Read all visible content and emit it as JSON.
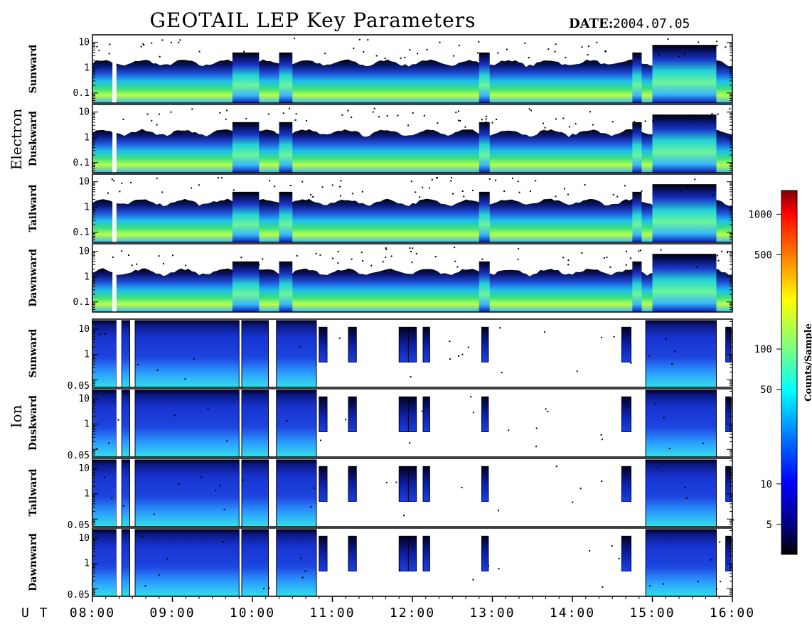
{
  "header": {
    "title": "GEOTAIL LEP Key Parameters",
    "date_label": "DATE:",
    "date_value": "2004.07.05"
  },
  "groups": [
    {
      "name": "Electron"
    },
    {
      "name": "Ion"
    }
  ],
  "chart_data": {
    "type": "heatmap",
    "title": "GEOTAIL LEP Key Parameters",
    "xlabel": "U T",
    "x_range": [
      "08:00",
      "16:00"
    ],
    "x_ticks": [
      "08:00",
      "09:00",
      "10:00",
      "11:00",
      "12:00",
      "13:00",
      "14:00",
      "15:00",
      "16:00"
    ],
    "panels": [
      {
        "group": "Electron",
        "direction": "Sunward",
        "y_scale": "log",
        "y_range": [
          0.04,
          20
        ],
        "y_ticks": [
          "10",
          "1",
          "0.1"
        ]
      },
      {
        "group": "Electron",
        "direction": "Duskward",
        "y_scale": "log",
        "y_range": [
          0.04,
          20
        ],
        "y_ticks": [
          "10",
          "1",
          "0.1"
        ]
      },
      {
        "group": "Electron",
        "direction": "Tailward",
        "y_scale": "log",
        "y_range": [
          0.04,
          20
        ],
        "y_ticks": [
          "10",
          "1",
          "0.1"
        ]
      },
      {
        "group": "Electron",
        "direction": "Dawnward",
        "y_scale": "log",
        "y_range": [
          0.04,
          20
        ],
        "y_ticks": [
          "10",
          "1",
          "0.1"
        ]
      },
      {
        "group": "Ion",
        "direction": "Sunward",
        "y_scale": "log",
        "y_range": [
          0.05,
          25
        ],
        "y_ticks": [
          "10",
          "1",
          "0.05"
        ]
      },
      {
        "group": "Ion",
        "direction": "Duskward",
        "y_scale": "log",
        "y_range": [
          0.05,
          25
        ],
        "y_ticks": [
          "10",
          "1",
          "0.05"
        ]
      },
      {
        "group": "Ion",
        "direction": "Tailward",
        "y_scale": "log",
        "y_range": [
          0.05,
          25
        ],
        "y_ticks": [
          "10",
          "1",
          "0.05"
        ]
      },
      {
        "group": "Ion",
        "direction": "Dawnward",
        "y_scale": "log",
        "y_range": [
          0.05,
          25
        ],
        "y_ticks": [
          "10",
          "1",
          "0.05"
        ]
      }
    ],
    "electron_activity": [
      {
        "start": "08:15",
        "end": "08:18",
        "level": "gap"
      },
      {
        "start": "09:45",
        "end": "10:05",
        "level": "enhanced"
      },
      {
        "start": "10:20",
        "end": "10:30",
        "level": "enhanced"
      },
      {
        "start": "12:50",
        "end": "12:58",
        "level": "enhanced"
      },
      {
        "start": "14:45",
        "end": "14:52",
        "level": "enhanced"
      },
      {
        "start": "15:00",
        "end": "15:48",
        "level": "enhanced"
      }
    ],
    "ion_activity": [
      {
        "start": "08:00",
        "end": "08:18",
        "level": "medium"
      },
      {
        "start": "08:18",
        "end": "08:22",
        "level": "gap"
      },
      {
        "start": "08:22",
        "end": "08:28",
        "level": "medium"
      },
      {
        "start": "08:32",
        "end": "09:50",
        "level": "medium"
      },
      {
        "start": "09:52",
        "end": "10:12",
        "level": "medium"
      },
      {
        "start": "10:18",
        "end": "10:48",
        "level": "medium"
      },
      {
        "start": "10:50",
        "end": "10:56",
        "level": "low"
      },
      {
        "start": "11:12",
        "end": "11:18",
        "level": "low"
      },
      {
        "start": "11:50",
        "end": "11:57",
        "level": "low"
      },
      {
        "start": "11:57",
        "end": "12:03",
        "level": "low"
      },
      {
        "start": "12:08",
        "end": "12:13",
        "level": "low"
      },
      {
        "start": "12:52",
        "end": "12:57",
        "level": "low"
      },
      {
        "start": "14:37",
        "end": "14:44",
        "level": "low"
      },
      {
        "start": "14:55",
        "end": "15:48",
        "level": "medium"
      },
      {
        "start": "15:55",
        "end": "15:59",
        "level": "low"
      }
    ],
    "colorbar": {
      "label": "Counts/Sample",
      "scale": "log",
      "range": [
        3,
        1500
      ],
      "ticks": [
        {
          "value": 5,
          "label": "5"
        },
        {
          "value": 10,
          "label": "10"
        },
        {
          "value": 50,
          "label": "50"
        },
        {
          "value": 100,
          "label": "100"
        },
        {
          "value": 500,
          "label": "500"
        },
        {
          "value": 1000,
          "label": "1000"
        }
      ],
      "colors": [
        "#000000",
        "#00007f",
        "#0000ff",
        "#007fff",
        "#00ffff",
        "#7fff7f",
        "#ffff00",
        "#ff7f00",
        "#ff0000",
        "#7f0000"
      ]
    }
  }
}
